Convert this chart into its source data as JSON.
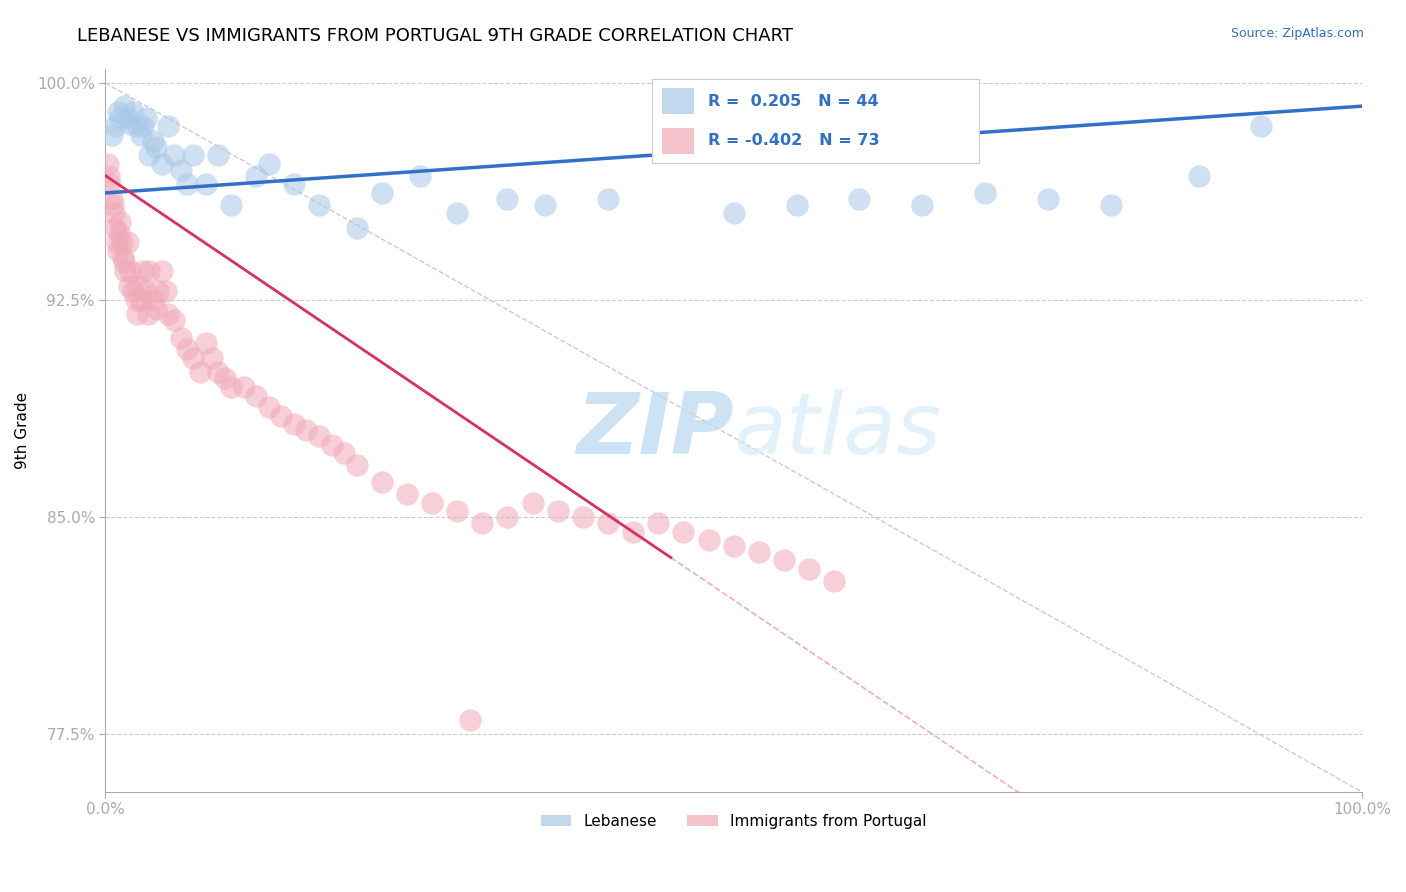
{
  "title": "LEBANESE VS IMMIGRANTS FROM PORTUGAL 9TH GRADE CORRELATION CHART",
  "source_text": "Source: ZipAtlas.com",
  "ylabel": "9th Grade",
  "xlim": [
    0.0,
    1.0
  ],
  "ylim": [
    0.755,
    1.005
  ],
  "yticks": [
    0.775,
    0.85,
    0.925,
    1.0
  ],
  "ytick_labels": [
    "77.5%",
    "85.0%",
    "92.5%",
    "100.0%"
  ],
  "xticks": [
    0.0,
    1.0
  ],
  "xtick_labels": [
    "0.0%",
    "100.0%"
  ],
  "legend_r_blue": "R =  0.205",
  "legend_n_blue": "N = 44",
  "legend_r_pink": "R = -0.402",
  "legend_n_pink": "N = 73",
  "legend_label_blue": "Lebanese",
  "legend_label_pink": "Immigrants from Portugal",
  "blue_color": "#a8c8e8",
  "pink_color": "#f0a8b8",
  "trend_blue_color": "#3070c8",
  "trend_pink_color": "#d83060",
  "title_fontsize": 13,
  "watermark_color": "#ddeef8",
  "blue_trend_x0": 0.0,
  "blue_trend_y0": 0.962,
  "blue_trend_x1": 1.0,
  "blue_trend_y1": 0.992,
  "pink_trend_x0": 0.0,
  "pink_trend_y0": 0.968,
  "pink_trend_x1": 0.45,
  "pink_trend_y1": 0.836,
  "blue_scatter_x": [
    0.005,
    0.008,
    0.01,
    0.012,
    0.015,
    0.018,
    0.02,
    0.022,
    0.025,
    0.028,
    0.03,
    0.032,
    0.035,
    0.038,
    0.04,
    0.045,
    0.05,
    0.055,
    0.06,
    0.065,
    0.07,
    0.08,
    0.09,
    0.1,
    0.12,
    0.13,
    0.15,
    0.17,
    0.2,
    0.22,
    0.25,
    0.28,
    0.32,
    0.35,
    0.4,
    0.5,
    0.55,
    0.6,
    0.65,
    0.7,
    0.75,
    0.8,
    0.87,
    0.92
  ],
  "blue_scatter_y": [
    0.982,
    0.985,
    0.99,
    0.988,
    0.992,
    0.988,
    0.986,
    0.99,
    0.985,
    0.982,
    0.985,
    0.988,
    0.975,
    0.98,
    0.978,
    0.972,
    0.985,
    0.975,
    0.97,
    0.965,
    0.975,
    0.965,
    0.975,
    0.958,
    0.968,
    0.972,
    0.965,
    0.958,
    0.95,
    0.962,
    0.968,
    0.955,
    0.96,
    0.958,
    0.96,
    0.955,
    0.958,
    0.96,
    0.958,
    0.962,
    0.96,
    0.958,
    0.968,
    0.985
  ],
  "pink_scatter_x": [
    0.002,
    0.003,
    0.004,
    0.005,
    0.006,
    0.007,
    0.008,
    0.009,
    0.01,
    0.011,
    0.012,
    0.013,
    0.014,
    0.015,
    0.016,
    0.018,
    0.019,
    0.02,
    0.022,
    0.024,
    0.025,
    0.026,
    0.028,
    0.03,
    0.032,
    0.034,
    0.035,
    0.038,
    0.04,
    0.042,
    0.045,
    0.048,
    0.05,
    0.055,
    0.06,
    0.065,
    0.07,
    0.075,
    0.08,
    0.085,
    0.09,
    0.095,
    0.1,
    0.11,
    0.12,
    0.13,
    0.14,
    0.15,
    0.16,
    0.17,
    0.18,
    0.19,
    0.2,
    0.22,
    0.24,
    0.26,
    0.28,
    0.3,
    0.32,
    0.34,
    0.36,
    0.38,
    0.4,
    0.42,
    0.44,
    0.46,
    0.48,
    0.5,
    0.52,
    0.54,
    0.56,
    0.58,
    0.29
  ],
  "pink_scatter_y": [
    0.972,
    0.968,
    0.965,
    0.96,
    0.958,
    0.955,
    0.95,
    0.945,
    0.942,
    0.948,
    0.952,
    0.945,
    0.94,
    0.938,
    0.935,
    0.945,
    0.93,
    0.935,
    0.928,
    0.925,
    0.92,
    0.93,
    0.925,
    0.935,
    0.928,
    0.92,
    0.935,
    0.925,
    0.922,
    0.928,
    0.935,
    0.928,
    0.92,
    0.918,
    0.912,
    0.908,
    0.905,
    0.9,
    0.91,
    0.905,
    0.9,
    0.898,
    0.895,
    0.895,
    0.892,
    0.888,
    0.885,
    0.882,
    0.88,
    0.878,
    0.875,
    0.872,
    0.868,
    0.862,
    0.858,
    0.855,
    0.852,
    0.848,
    0.85,
    0.855,
    0.852,
    0.85,
    0.848,
    0.845,
    0.848,
    0.845,
    0.842,
    0.84,
    0.838,
    0.835,
    0.832,
    0.828,
    0.78
  ]
}
